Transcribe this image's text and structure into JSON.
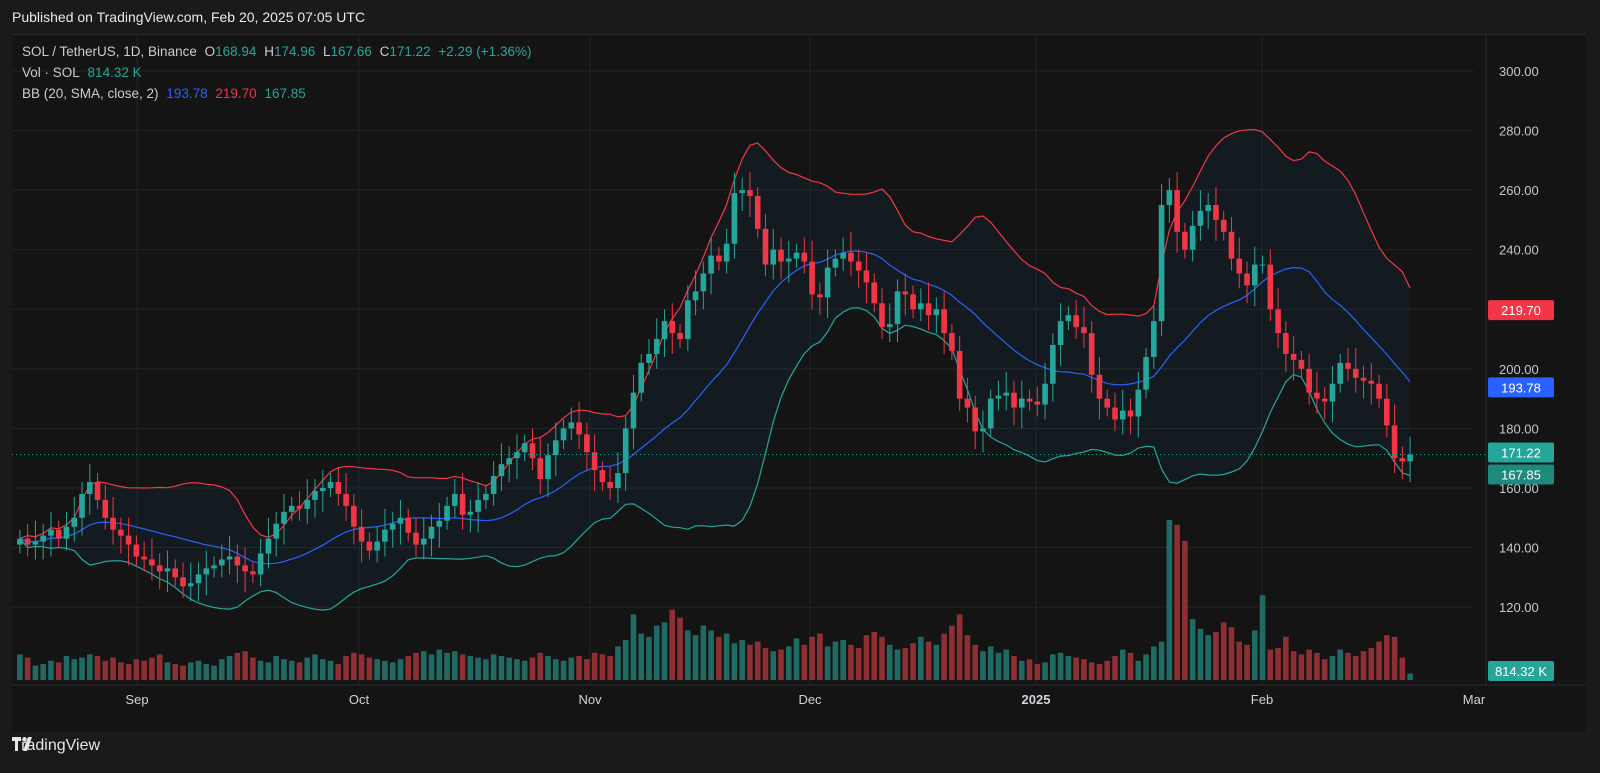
{
  "header": {
    "published": "Published on TradingView.com, Feb 20, 2025 07:05 UTC"
  },
  "legend": {
    "symbol": "SOL / TetherUS, 1D, Binance",
    "o_label": "O",
    "o": "168.94",
    "h_label": "H",
    "h": "174.96",
    "l_label": "L",
    "l": "167.66",
    "c_label": "C",
    "c": "171.22",
    "change": "+2.29 (+1.36%)",
    "vol_label": "Vol · SOL",
    "vol": "814.32 K",
    "bb_label": "BB (20, SMA, close, 2)",
    "bb_mid": "193.78",
    "bb_upper": "219.70",
    "bb_lower": "167.85"
  },
  "badges": {
    "upper": "219.70",
    "mid": "193.78",
    "close": "171.22",
    "lower": "167.85",
    "volume": "814.32 K"
  },
  "brand": {
    "name": "TradingView"
  },
  "colors": {
    "up": "#26a69a",
    "down": "#f23645",
    "upper_band": "#f23645",
    "mid_band": "#2962ff",
    "lower_band": "#26a69a",
    "vol_up": "#1f6b63",
    "vol_down": "#8e2f33"
  },
  "chart_data": {
    "type": "candlestick",
    "symbol": "SOL / TetherUS",
    "interval": "1D",
    "y_axis_ticks": [
      "300.00",
      "280.00",
      "260.00",
      "240.00",
      "220.00",
      "200.00",
      "180.00",
      "160.00",
      "140.00",
      "120.00"
    ],
    "ylim": [
      114,
      302
    ],
    "x_axis_labels": [
      "Sep",
      "Oct",
      "Nov",
      "Dec",
      "2025",
      "Feb",
      "Mar"
    ],
    "grid": true,
    "close_series": [
      143,
      141,
      142,
      144,
      146,
      143,
      147,
      150,
      158,
      162,
      156,
      150,
      146,
      144,
      141,
      137,
      136,
      134,
      132,
      133,
      130,
      127,
      128,
      131,
      133,
      134,
      136,
      137,
      134,
      132,
      131,
      138,
      143,
      148,
      152,
      154,
      153,
      156,
      159,
      160,
      162,
      158,
      154,
      147,
      142,
      139,
      142,
      146,
      148,
      150,
      145,
      141,
      143,
      147,
      149,
      154,
      158,
      151,
      152,
      156,
      158,
      164,
      168,
      170,
      172,
      175,
      170,
      163,
      171,
      176,
      180,
      182,
      178,
      172,
      166,
      162,
      160,
      165,
      180,
      192,
      202,
      205,
      210,
      216,
      212,
      210,
      223,
      226,
      232,
      238,
      236,
      242,
      259,
      260,
      258,
      247,
      235,
      240,
      236,
      237,
      239,
      236,
      225,
      224,
      234,
      237,
      239,
      236,
      233,
      229,
      222,
      214,
      215,
      226,
      225,
      220,
      222,
      218,
      220,
      212,
      206,
      190,
      187,
      179,
      180,
      190,
      191,
      192,
      187,
      190,
      189,
      188,
      195,
      208,
      216,
      218,
      214,
      212,
      198,
      190,
      187,
      183,
      186,
      184,
      193,
      204,
      216,
      255,
      260,
      246,
      240,
      248,
      253,
      255,
      250,
      246,
      237,
      232,
      228,
      235,
      235,
      220,
      212,
      205,
      203,
      200,
      192,
      190,
      189,
      195,
      202,
      200,
      197,
      196,
      195,
      190,
      181,
      170,
      168.94,
      171.22
    ],
    "volume_k_fraction": [
      0.16,
      0.14,
      0.09,
      0.1,
      0.12,
      0.11,
      0.15,
      0.13,
      0.14,
      0.16,
      0.15,
      0.12,
      0.14,
      0.11,
      0.1,
      0.13,
      0.12,
      0.14,
      0.16,
      0.11,
      0.1,
      0.09,
      0.11,
      0.12,
      0.1,
      0.09,
      0.13,
      0.15,
      0.17,
      0.18,
      0.14,
      0.12,
      0.11,
      0.15,
      0.13,
      0.12,
      0.11,
      0.14,
      0.16,
      0.13,
      0.12,
      0.1,
      0.15,
      0.17,
      0.16,
      0.14,
      0.13,
      0.12,
      0.11,
      0.13,
      0.15,
      0.17,
      0.18,
      0.16,
      0.19,
      0.17,
      0.18,
      0.16,
      0.15,
      0.14,
      0.13,
      0.16,
      0.15,
      0.14,
      0.13,
      0.12,
      0.14,
      0.17,
      0.15,
      0.13,
      0.12,
      0.14,
      0.15,
      0.13,
      0.17,
      0.16,
      0.15,
      0.21,
      0.25,
      0.41,
      0.29,
      0.27,
      0.34,
      0.36,
      0.44,
      0.39,
      0.31,
      0.28,
      0.34,
      0.31,
      0.27,
      0.29,
      0.23,
      0.25,
      0.22,
      0.24,
      0.2,
      0.18,
      0.19,
      0.21,
      0.26,
      0.22,
      0.27,
      0.29,
      0.21,
      0.24,
      0.25,
      0.22,
      0.2,
      0.28,
      0.3,
      0.27,
      0.22,
      0.19,
      0.2,
      0.23,
      0.27,
      0.24,
      0.22,
      0.29,
      0.34,
      0.41,
      0.28,
      0.22,
      0.18,
      0.21,
      0.17,
      0.19,
      0.15,
      0.12,
      0.13,
      0.1,
      0.11,
      0.16,
      0.17,
      0.15,
      0.14,
      0.13,
      0.11,
      0.1,
      0.12,
      0.15,
      0.19,
      0.17,
      0.12,
      0.16,
      0.21,
      0.24,
      1.0,
      0.97,
      0.87,
      0.38,
      0.32,
      0.28,
      0.3,
      0.36,
      0.33,
      0.24,
      0.22,
      0.31,
      0.53,
      0.19,
      0.2,
      0.27,
      0.18,
      0.16,
      0.19,
      0.17,
      0.13,
      0.15,
      0.19,
      0.17,
      0.15,
      0.18,
      0.2,
      0.24,
      0.28,
      0.27,
      0.14,
      0.04
    ]
  }
}
